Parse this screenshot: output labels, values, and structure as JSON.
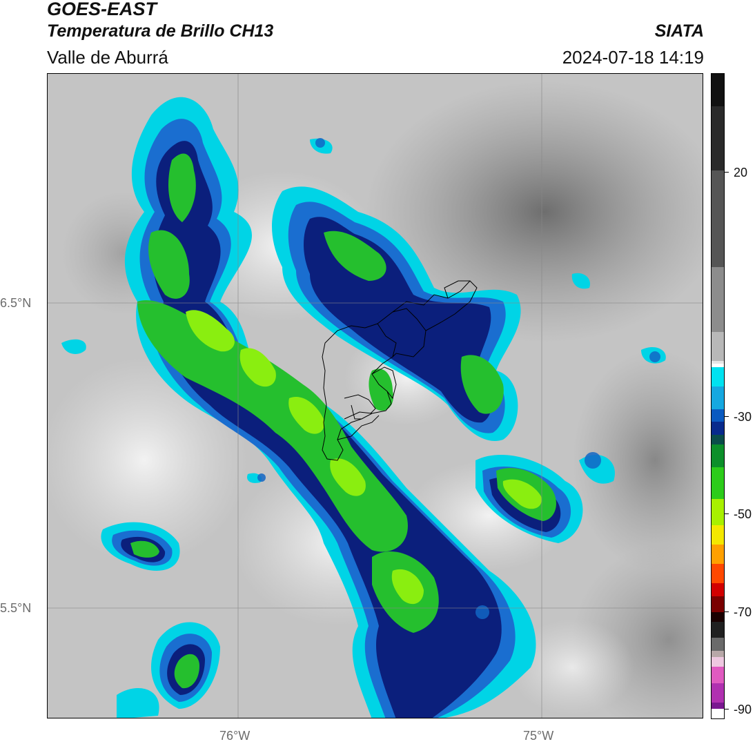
{
  "header": {
    "satellite": "GOES-EAST",
    "product": "Temperatura de Brillo CH13",
    "region": "Valle de Aburrá",
    "organization": "SIATA",
    "datetime": "2024-07-18 14:19"
  },
  "map": {
    "lat_labels": [
      "6.5°N",
      "5.5°N"
    ],
    "lon_labels": [
      "76°W",
      "75°W"
    ],
    "lat_values": [
      6.5,
      5.5
    ],
    "lon_values": [
      -76.0,
      -75.0
    ],
    "grid": true
  },
  "colorbar": {
    "labels": [
      "20",
      "-30",
      "-50",
      "-70",
      "-90"
    ],
    "values": [
      20,
      -30,
      -50,
      -70,
      -90
    ],
    "range": [
      -92,
      45
    ],
    "units_shown": false
  },
  "colors": {
    "cloud_cyan": "#00d8e8",
    "cloud_blue": "#1266c4",
    "cloud_navy": "#0a1f7a",
    "cloud_green": "#22c12a",
    "cloud_lime": "#8af000",
    "background_gray": "#bdbdbd"
  }
}
